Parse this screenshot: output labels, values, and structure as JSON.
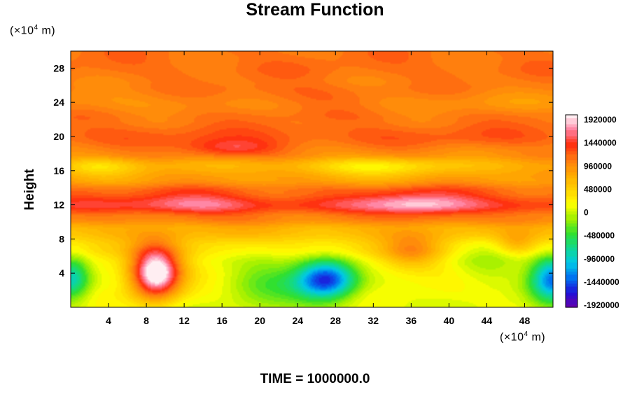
{
  "chart_data": {
    "type": "heatmap",
    "title": "Stream Function",
    "ylabel": "Height",
    "x_unit": [
      "(×10",
      "4",
      " m)"
    ],
    "y_unit": [
      "(×10",
      "4",
      " m)"
    ],
    "footer": "TIME = 1000000.0",
    "xlim": [
      0,
      51
    ],
    "ylim": [
      0,
      30
    ],
    "x_ticks": [
      4,
      8,
      12,
      16,
      20,
      24,
      28,
      32,
      36,
      40,
      44,
      48
    ],
    "y_ticks": [
      4,
      8,
      12,
      16,
      20,
      24,
      28
    ],
    "colorbar": {
      "min": -1920000,
      "max": 1920000,
      "labels": [
        1920000,
        1440000,
        960000,
        480000,
        0,
        -480000,
        -960000,
        -1440000,
        -1920000
      ],
      "colors": [
        "#6a00a8",
        "#2010d8",
        "#0070f0",
        "#00c8e8",
        "#10d890",
        "#30e030",
        "#a0f000",
        "#ffff00",
        "#ffd000",
        "#ffa800",
        "#ff7a10",
        "#ff3010",
        "#ff80a0",
        "#ffffff"
      ]
    },
    "field": {
      "background_profile": [
        {
          "height": 0,
          "value": 100000
        },
        {
          "height": 2,
          "value": 150000
        },
        {
          "height": 5,
          "value": 250000
        },
        {
          "height": 7,
          "value": 420000
        },
        {
          "height": 9,
          "value": 650000
        },
        {
          "height": 10.5,
          "value": 950000
        },
        {
          "height": 12,
          "value": 1300000
        },
        {
          "height": 13.5,
          "value": 1100000
        },
        {
          "height": 15,
          "value": 800000
        },
        {
          "height": 16.5,
          "value": 700000
        },
        {
          "height": 18,
          "value": 950000
        },
        {
          "height": 20,
          "value": 1150000
        },
        {
          "height": 22,
          "value": 1050000
        },
        {
          "height": 24,
          "value": 880000
        },
        {
          "height": 26,
          "value": 1000000
        },
        {
          "height": 28,
          "value": 1070000
        },
        {
          "height": 30,
          "value": 1050000
        }
      ],
      "features": [
        {
          "x": 9,
          "y": 4,
          "amplitude": 1950000,
          "sx": 2.6,
          "sy": 3.0
        },
        {
          "x": 27,
          "y": 3.3,
          "amplitude": -1700000,
          "sx": 3.2,
          "sy": 2.4
        },
        {
          "x": 51,
          "y": 3.5,
          "amplitude": -1500000,
          "sx": 2.4,
          "sy": 2.8
        },
        {
          "x": 0,
          "y": 3.5,
          "amplitude": -1100000,
          "sx": 2.0,
          "sy": 2.6
        },
        {
          "x": 21,
          "y": 3.5,
          "amplitude": -500000,
          "sx": 4.5,
          "sy": 3.5
        },
        {
          "x": 37,
          "y": 12,
          "amplitude": 550000,
          "sx": 6.0,
          "sy": 1.6
        },
        {
          "x": 13,
          "y": 12,
          "amplitude": 350000,
          "sx": 6.0,
          "sy": 1.6
        },
        {
          "x": 17,
          "y": 18.6,
          "amplitude": 450000,
          "sx": 5.0,
          "sy": 1.0
        },
        {
          "x": 32,
          "y": 16.5,
          "amplitude": -450000,
          "sx": 8.0,
          "sy": 1.2
        },
        {
          "x": 3,
          "y": 16.5,
          "amplitude": -350000,
          "sx": 4.0,
          "sy": 1.2
        },
        {
          "x": 36,
          "y": 6.5,
          "amplitude": 500000,
          "sx": 3.0,
          "sy": 2.0
        },
        {
          "x": 44,
          "y": 5.5,
          "amplitude": -350000,
          "sx": 4.0,
          "sy": 3.0
        },
        {
          "x": 47,
          "y": 7.5,
          "amplitude": 350000,
          "sx": 2.0,
          "sy": 1.2
        },
        {
          "x": 24,
          "y": 24.5,
          "amplitude": 200000,
          "sx": 10.0,
          "sy": 1.5
        }
      ]
    }
  }
}
